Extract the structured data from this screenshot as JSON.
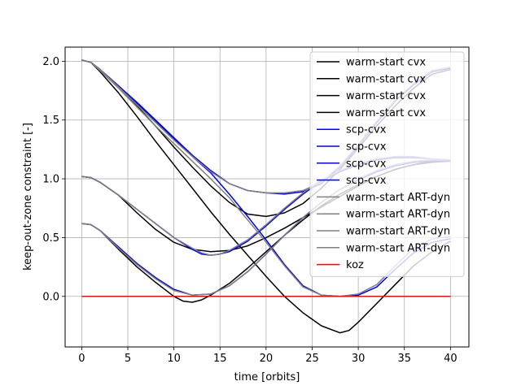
{
  "chart_data": {
    "type": "line",
    "xlabel": "time [orbits]",
    "ylabel": "keep-out-zone constraint [-]",
    "xlim": [
      -1.8,
      42
    ],
    "ylim": [
      -0.43,
      2.12
    ],
    "xticks": [
      0,
      5,
      10,
      15,
      20,
      25,
      30,
      35,
      40
    ],
    "yticks": [
      -0.5,
      0.0,
      0.5,
      1.0,
      1.5,
      2.0
    ],
    "ytick_labels": [
      "",
      "0.0",
      "0.5",
      "1.0",
      "1.5",
      "2.0"
    ],
    "grid": true,
    "legend_position": "upper right",
    "series": [
      {
        "name": "warm-start cvx",
        "group": "warm-start cvx",
        "color": "#000000",
        "x": [
          0,
          1,
          2,
          4,
          6,
          8,
          10,
          12,
          14,
          16,
          18,
          20,
          22,
          24,
          26,
          28,
          30,
          32,
          34,
          36,
          38,
          40
        ],
        "y": [
          2.01,
          1.99,
          1.92,
          1.78,
          1.62,
          1.45,
          1.27,
          1.1,
          0.94,
          0.8,
          0.7,
          0.68,
          0.71,
          0.79,
          0.92,
          1.08,
          1.26,
          1.45,
          1.62,
          1.77,
          1.89,
          1.93
        ]
      },
      {
        "name": "warm-start cvx",
        "group": "warm-start cvx",
        "color": "#000000",
        "x": [
          0,
          1,
          2,
          4,
          6,
          8,
          10,
          12,
          14,
          16,
          18,
          20,
          22,
          24,
          26,
          28,
          29,
          30,
          32,
          34,
          36,
          38,
          40
        ],
        "y": [
          2.01,
          1.99,
          1.91,
          1.73,
          1.53,
          1.32,
          1.12,
          0.92,
          0.72,
          0.53,
          0.35,
          0.17,
          0.0,
          -0.14,
          -0.25,
          -0.31,
          -0.29,
          -0.22,
          -0.06,
          0.1,
          0.26,
          0.38,
          0.47
        ]
      },
      {
        "name": "warm-start cvx",
        "group": "warm-start cvx",
        "color": "#000000",
        "x": [
          0,
          1,
          2,
          4,
          6,
          8,
          10,
          12,
          14,
          16,
          18,
          20,
          22,
          24,
          26,
          28,
          30,
          32,
          34,
          36,
          38,
          40
        ],
        "y": [
          1.02,
          1.01,
          0.97,
          0.86,
          0.71,
          0.57,
          0.46,
          0.4,
          0.38,
          0.39,
          0.43,
          0.5,
          0.58,
          0.67,
          0.76,
          0.85,
          0.94,
          1.02,
          1.08,
          1.12,
          1.15,
          1.16
        ]
      },
      {
        "name": "warm-start cvx",
        "group": "warm-start cvx",
        "color": "#000000",
        "x": [
          0,
          1,
          2,
          4,
          6,
          8,
          10,
          11,
          12,
          13,
          14,
          16,
          18,
          20,
          22,
          24,
          26,
          28,
          30,
          32,
          34,
          36,
          38,
          40
        ],
        "y": [
          0.62,
          0.61,
          0.56,
          0.4,
          0.25,
          0.12,
          0.0,
          -0.04,
          -0.05,
          -0.03,
          0.01,
          0.11,
          0.24,
          0.38,
          0.52,
          0.65,
          0.77,
          0.87,
          0.95,
          1.02,
          1.08,
          1.12,
          1.14,
          1.15
        ]
      },
      {
        "name": "scp-cvx",
        "group": "scp-cvx",
        "color": "#0000ff",
        "x": [
          0,
          1,
          2,
          4,
          6,
          8,
          10,
          12,
          14,
          16,
          18,
          20,
          22,
          24,
          26,
          28,
          30,
          32,
          34,
          36,
          38,
          40
        ],
        "y": [
          2.01,
          1.99,
          1.93,
          1.79,
          1.65,
          1.5,
          1.35,
          1.2,
          1.07,
          0.96,
          0.9,
          0.88,
          0.87,
          0.89,
          0.96,
          1.1,
          1.28,
          1.48,
          1.66,
          1.8,
          1.91,
          1.94
        ]
      },
      {
        "name": "scp-cvx",
        "group": "scp-cvx",
        "color": "#0000ff",
        "x": [
          0,
          1,
          2,
          4,
          6,
          8,
          10,
          12,
          14,
          16,
          18,
          20,
          22,
          24,
          26,
          28,
          30,
          32,
          34,
          36,
          38,
          40
        ],
        "y": [
          2.01,
          1.99,
          1.93,
          1.79,
          1.64,
          1.49,
          1.34,
          1.19,
          1.05,
          0.87,
          0.68,
          0.48,
          0.27,
          0.09,
          0.01,
          0.0,
          0.01,
          0.08,
          0.23,
          0.37,
          0.46,
          0.49
        ]
      },
      {
        "name": "scp-cvx",
        "group": "scp-cvx",
        "color": "#0000ff",
        "x": [
          0,
          1,
          2,
          4,
          6,
          8,
          10,
          12,
          13,
          14,
          15,
          16,
          18,
          20,
          22,
          24,
          26,
          28,
          30,
          32,
          34,
          36,
          38,
          40
        ],
        "y": [
          1.02,
          1.01,
          0.97,
          0.86,
          0.74,
          0.62,
          0.5,
          0.4,
          0.36,
          0.35,
          0.36,
          0.38,
          0.47,
          0.6,
          0.74,
          0.87,
          0.98,
          1.06,
          1.12,
          1.16,
          1.18,
          1.18,
          1.17,
          1.16
        ]
      },
      {
        "name": "scp-cvx",
        "group": "scp-cvx",
        "color": "#0000ff",
        "x": [
          0,
          1,
          2,
          4,
          6,
          8,
          10,
          12,
          14,
          16,
          18,
          20,
          22,
          24,
          26,
          28,
          30,
          32,
          34,
          36,
          38,
          40
        ],
        "y": [
          0.62,
          0.61,
          0.56,
          0.42,
          0.28,
          0.16,
          0.06,
          0.01,
          0.02,
          0.09,
          0.21,
          0.36,
          0.52,
          0.67,
          0.8,
          0.91,
          0.99,
          1.06,
          1.11,
          1.14,
          1.15,
          1.15
        ]
      },
      {
        "name": "warm-start ART-dyn",
        "group": "warm-start ART-dyn",
        "color": "#808080",
        "x": [
          0,
          1,
          2,
          4,
          6,
          8,
          10,
          12,
          14,
          16,
          18,
          20,
          22,
          24,
          26,
          28,
          30,
          32,
          34,
          36,
          38,
          40
        ],
        "y": [
          2.01,
          1.99,
          1.93,
          1.78,
          1.63,
          1.48,
          1.33,
          1.19,
          1.06,
          0.96,
          0.9,
          0.88,
          0.88,
          0.9,
          0.97,
          1.11,
          1.29,
          1.49,
          1.67,
          1.81,
          1.92,
          1.95
        ]
      },
      {
        "name": "warm-start ART-dyn",
        "group": "warm-start ART-dyn",
        "color": "#808080",
        "x": [
          0,
          1,
          2,
          4,
          6,
          8,
          10,
          12,
          14,
          16,
          18,
          20,
          22,
          24,
          26,
          28,
          30,
          32,
          34,
          36,
          38,
          40
        ],
        "y": [
          2.01,
          1.99,
          1.92,
          1.77,
          1.61,
          1.45,
          1.3,
          1.15,
          1.0,
          0.84,
          0.65,
          0.46,
          0.26,
          0.08,
          0.01,
          0.0,
          0.02,
          0.1,
          0.26,
          0.41,
          0.49,
          0.51
        ]
      },
      {
        "name": "warm-start ART-dyn",
        "group": "warm-start ART-dyn",
        "color": "#808080",
        "x": [
          0,
          1,
          2,
          4,
          6,
          8,
          10,
          12,
          13,
          14,
          15,
          16,
          18,
          20,
          22,
          24,
          26,
          28,
          30,
          32,
          34,
          36,
          38,
          40
        ],
        "y": [
          1.02,
          1.01,
          0.97,
          0.86,
          0.74,
          0.62,
          0.5,
          0.41,
          0.37,
          0.35,
          0.36,
          0.39,
          0.48,
          0.61,
          0.75,
          0.88,
          0.99,
          1.07,
          1.13,
          1.17,
          1.19,
          1.19,
          1.17,
          1.16
        ]
      },
      {
        "name": "warm-start ART-dyn",
        "group": "warm-start ART-dyn",
        "color": "#808080",
        "x": [
          0,
          1,
          2,
          4,
          6,
          8,
          10,
          12,
          14,
          16,
          18,
          20,
          22,
          24,
          26,
          28,
          30,
          32,
          34,
          36,
          38,
          40
        ],
        "y": [
          0.62,
          0.61,
          0.56,
          0.41,
          0.27,
          0.15,
          0.05,
          0.01,
          0.02,
          0.09,
          0.21,
          0.36,
          0.52,
          0.67,
          0.8,
          0.91,
          1.0,
          1.07,
          1.12,
          1.15,
          1.16,
          1.16
        ]
      },
      {
        "name": "koz",
        "group": "koz",
        "color": "#ff0000",
        "x": [
          0,
          40
        ],
        "y": [
          0,
          0
        ]
      }
    ]
  }
}
